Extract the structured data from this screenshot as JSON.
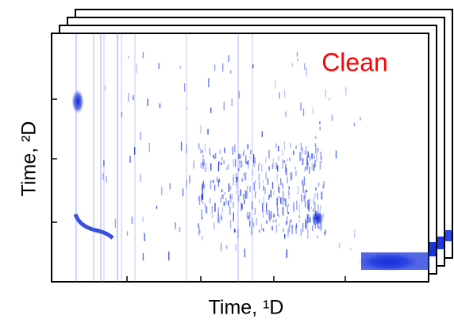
{
  "annotation": "Clean",
  "y_axis_label": "Time, ²D",
  "x_axis_label": "Time, ¹D"
}
